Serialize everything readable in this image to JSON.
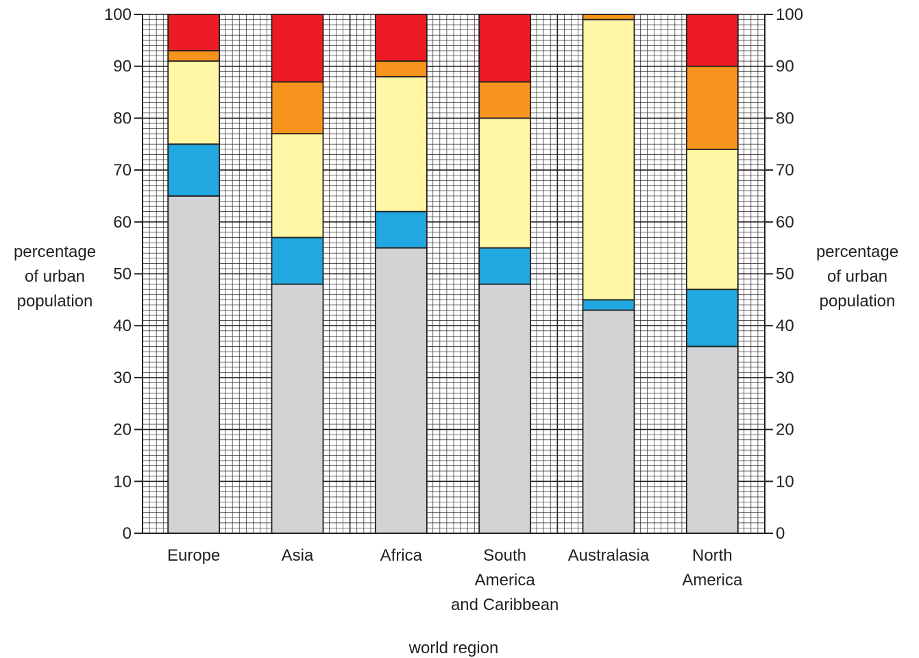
{
  "chart_data": {
    "type": "bar",
    "stacked": true,
    "categories": [
      [
        "Europe"
      ],
      [
        "Asia"
      ],
      [
        "Africa"
      ],
      [
        "South",
        "America",
        "and Caribbean"
      ],
      [
        "Australasia"
      ],
      [
        "North",
        "America"
      ]
    ],
    "series": [
      {
        "color": "#d1d3d4",
        "values": [
          65,
          48,
          55,
          48,
          43,
          36
        ]
      },
      {
        "color": "#22a8e0",
        "values": [
          10,
          9,
          7,
          7,
          2,
          11
        ]
      },
      {
        "color": "#fff7a6",
        "values": [
          16,
          20,
          26,
          25,
          54,
          27
        ]
      },
      {
        "color": "#f7941d",
        "values": [
          2,
          10,
          3,
          7,
          1,
          16
        ]
      },
      {
        "color": "#ed1c24",
        "values": [
          7,
          13,
          9,
          13,
          0,
          10
        ]
      }
    ],
    "ylabel": [
      "percentage",
      "of urban",
      "population"
    ],
    "ylabel_right": [
      "percentage",
      "of urban",
      "population"
    ],
    "xlabel": "world region",
    "ylim": [
      0,
      100
    ],
    "yticks": [
      "0",
      "10",
      "20",
      "30",
      "40",
      "50",
      "60",
      "70",
      "80",
      "90",
      "100"
    ],
    "grid": true,
    "legend": "none"
  }
}
